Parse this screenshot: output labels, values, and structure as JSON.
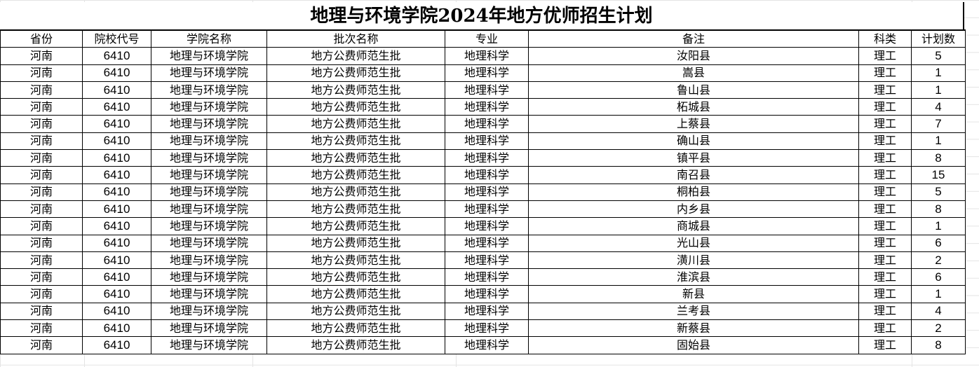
{
  "title": "地理与环境学院2024年地方优师招生计划",
  "columns": [
    "省份",
    "院校代号",
    "学院名称",
    "批次名称",
    "专业",
    "备注",
    "科类",
    "计划数"
  ],
  "rows": [
    [
      "河南",
      "6410",
      "地理与环境学院",
      "地方公费师范生批",
      "地理科学",
      "汝阳县",
      "理工",
      "5"
    ],
    [
      "河南",
      "6410",
      "地理与环境学院",
      "地方公费师范生批",
      "地理科学",
      "嵩县",
      "理工",
      "1"
    ],
    [
      "河南",
      "6410",
      "地理与环境学院",
      "地方公费师范生批",
      "地理科学",
      "鲁山县",
      "理工",
      "1"
    ],
    [
      "河南",
      "6410",
      "地理与环境学院",
      "地方公费师范生批",
      "地理科学",
      "柘城县",
      "理工",
      "4"
    ],
    [
      "河南",
      "6410",
      "地理与环境学院",
      "地方公费师范生批",
      "地理科学",
      "上蔡县",
      "理工",
      "7"
    ],
    [
      "河南",
      "6410",
      "地理与环境学院",
      "地方公费师范生批",
      "地理科学",
      "确山县",
      "理工",
      "1"
    ],
    [
      "河南",
      "6410",
      "地理与环境学院",
      "地方公费师范生批",
      "地理科学",
      "镇平县",
      "理工",
      "8"
    ],
    [
      "河南",
      "6410",
      "地理与环境学院",
      "地方公费师范生批",
      "地理科学",
      "南召县",
      "理工",
      "15"
    ],
    [
      "河南",
      "6410",
      "地理与环境学院",
      "地方公费师范生批",
      "地理科学",
      "桐柏县",
      "理工",
      "5"
    ],
    [
      "河南",
      "6410",
      "地理与环境学院",
      "地方公费师范生批",
      "地理科学",
      "内乡县",
      "理工",
      "8"
    ],
    [
      "河南",
      "6410",
      "地理与环境学院",
      "地方公费师范生批",
      "地理科学",
      "商城县",
      "理工",
      "1"
    ],
    [
      "河南",
      "6410",
      "地理与环境学院",
      "地方公费师范生批",
      "地理科学",
      "光山县",
      "理工",
      "6"
    ],
    [
      "河南",
      "6410",
      "地理与环境学院",
      "地方公费师范生批",
      "地理科学",
      "潢川县",
      "理工",
      "2"
    ],
    [
      "河南",
      "6410",
      "地理与环境学院",
      "地方公费师范生批",
      "地理科学",
      "淮滨县",
      "理工",
      "6"
    ],
    [
      "河南",
      "6410",
      "地理与环境学院",
      "地方公费师范生批",
      "地理科学",
      "新县",
      "理工",
      "1"
    ],
    [
      "河南",
      "6410",
      "地理与环境学院",
      "地方公费师范生批",
      "地理科学",
      "兰考县",
      "理工",
      "4"
    ],
    [
      "河南",
      "6410",
      "地理与环境学院",
      "地方公费师范生批",
      "地理科学",
      "新蔡县",
      "理工",
      "2"
    ],
    [
      "河南",
      "6410",
      "地理与环境学院",
      "地方公费师范生批",
      "地理科学",
      "固始县",
      "理工",
      "8"
    ]
  ]
}
